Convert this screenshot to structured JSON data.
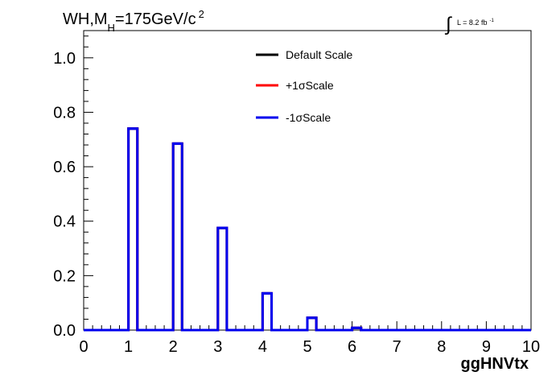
{
  "title": {
    "main": "WH,M",
    "subscript": "H",
    "rest": "=175GeV/c",
    "superscript": "2"
  },
  "luminosity": {
    "integral_symbol": "∫",
    "text": "L = 8.2 fb",
    "superscript": "-1"
  },
  "colors": {
    "default": "#000000",
    "plus": "#ff0000",
    "minus": "#0000ee",
    "frame": "#000000"
  },
  "chart_data": {
    "type": "line",
    "histogram": true,
    "xlabel": "ggHNVtx",
    "ylabel": "",
    "xlim": [
      0,
      10
    ],
    "ylim": [
      0,
      1.1
    ],
    "x_ticks": [
      "0",
      "1",
      "2",
      "3",
      "4",
      "5",
      "6",
      "7",
      "8",
      "9",
      "10"
    ],
    "y_ticks": [
      "0.0",
      "0.2",
      "0.4",
      "0.6",
      "0.8",
      "1.0"
    ],
    "bins": [
      [
        1.0,
        1.2,
        0.74
      ],
      [
        2.0,
        2.2,
        0.685
      ],
      [
        3.0,
        3.2,
        0.375
      ],
      [
        4.0,
        4.2,
        0.135
      ],
      [
        5.0,
        5.2,
        0.045
      ],
      [
        6.0,
        6.2,
        0.008
      ]
    ],
    "legend_position": "top-center",
    "series": [
      {
        "name": "Default Scale",
        "color": "#000000"
      },
      {
        "name": "+1σScale",
        "color": "#ff0000"
      },
      {
        "name": "-1σScale",
        "color": "#0000ee"
      }
    ]
  }
}
